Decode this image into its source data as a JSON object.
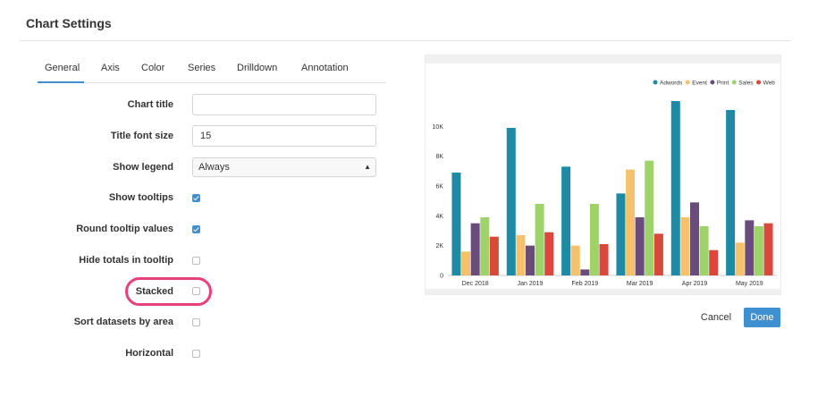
{
  "header": {
    "title": "Chart Settings"
  },
  "tabs": [
    {
      "label": "General",
      "active": true
    },
    {
      "label": "Axis",
      "active": false
    },
    {
      "label": "Color",
      "active": false
    },
    {
      "label": "Series",
      "active": false
    },
    {
      "label": "Drilldown",
      "active": false
    },
    {
      "label": "Annotation",
      "active": false
    }
  ],
  "form": {
    "chart_title": {
      "label": "Chart title",
      "value": ""
    },
    "title_font_size": {
      "label": "Title font size",
      "value": "15"
    },
    "show_legend": {
      "label": "Show legend",
      "value": "Always"
    },
    "show_tooltips": {
      "label": "Show tooltips",
      "checked": true
    },
    "round_tooltip_values": {
      "label": "Round tooltip values",
      "checked": true
    },
    "hide_totals_in_tooltip": {
      "label": "Hide totals in tooltip",
      "checked": false
    },
    "stacked": {
      "label": "Stacked",
      "checked": false,
      "highlighted": true
    },
    "sort_datasets_by_area": {
      "label": "Sort datasets by area",
      "checked": false
    },
    "horizontal": {
      "label": "Horizontal",
      "checked": false
    }
  },
  "icons": {
    "select_caret": "up-down-caret-icon"
  },
  "colors": {
    "accent": "#3e90d0",
    "highlight": "#e8407a"
  },
  "chart_data": {
    "type": "bar",
    "categories": [
      "Dec 2018",
      "Jan 2019",
      "Feb 2019",
      "Mar 2019",
      "Apr 2019",
      "May 2019"
    ],
    "series": [
      {
        "name": "Adwords",
        "color": "#1f8aa6",
        "values": [
          6900,
          9900,
          7300,
          5500,
          11700,
          11100
        ]
      },
      {
        "name": "Event",
        "color": "#f5c26b",
        "values": [
          1600,
          2700,
          2000,
          7100,
          3900,
          2200
        ]
      },
      {
        "name": "Print",
        "color": "#6a4c7c",
        "values": [
          3500,
          2000,
          400,
          3900,
          4900,
          3700
        ]
      },
      {
        "name": "Sales",
        "color": "#9ed36a",
        "values": [
          3900,
          4800,
          4800,
          7700,
          3300,
          3300
        ]
      },
      {
        "name": "Web",
        "color": "#d9483b",
        "values": [
          2600,
          2900,
          2100,
          2800,
          1700,
          3500
        ]
      }
    ],
    "yticks": [
      "0",
      "2K",
      "4K",
      "6K",
      "8K",
      "10K"
    ],
    "ylim": [
      0,
      12000
    ],
    "legend_position": "top-right",
    "grid": false
  },
  "footer": {
    "cancel_label": "Cancel",
    "done_label": "Done"
  }
}
